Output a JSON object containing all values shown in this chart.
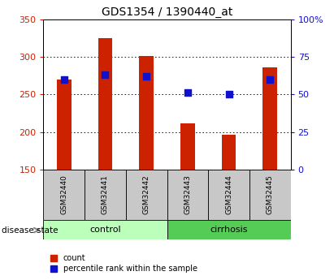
{
  "title": "GDS1354 / 1390440_at",
  "categories": [
    "GSM32440",
    "GSM32441",
    "GSM32442",
    "GSM32443",
    "GSM32444",
    "GSM32445"
  ],
  "bar_values": [
    270,
    325,
    301,
    212,
    196,
    286
  ],
  "percentile_values": [
    270,
    277,
    274,
    253,
    251,
    270
  ],
  "bar_color": "#cc2200",
  "percentile_color": "#1111cc",
  "ylim_left": [
    150,
    350
  ],
  "ylim_right": [
    0,
    100
  ],
  "yticks_left": [
    150,
    200,
    250,
    300,
    350
  ],
  "yticks_right": [
    0,
    25,
    50,
    75,
    100
  ],
  "ytick_labels_right": [
    "0",
    "25",
    "50",
    "75",
    "100%"
  ],
  "disease_state_label": "disease state",
  "control_text": "control",
  "cirrhosis_text": "cirrhosis",
  "legend_count": "count",
  "legend_percentile": "percentile rank within the sample",
  "bar_width": 0.35,
  "label_box_color": "#c8c8c8",
  "control_box_color": "#bbffbb",
  "cirrhosis_box_color": "#55cc55"
}
